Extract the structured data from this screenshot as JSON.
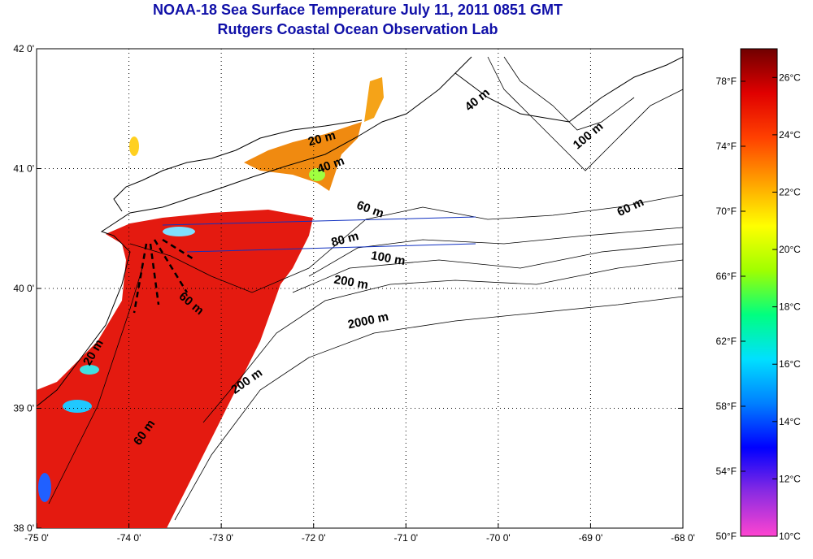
{
  "title": "NOAA-18 Sea Surface Temperature July 11, 2011 0851 GMT",
  "subtitle": "Rutgers Coastal Ocean Observation Lab",
  "map": {
    "lon_range": [
      -75,
      -68
    ],
    "lat_range": [
      38,
      42
    ],
    "lon_ticks": [
      {
        "value": -75,
        "label": "-75 0'"
      },
      {
        "value": -74,
        "label": "-74 0'"
      },
      {
        "value": -73,
        "label": "-73 0'"
      },
      {
        "value": -72,
        "label": "-72 0'"
      },
      {
        "value": -71,
        "label": "-71 0'"
      },
      {
        "value": -70,
        "label": "-70 0'"
      },
      {
        "value": -69,
        "label": "-69 0'"
      },
      {
        "value": -68,
        "label": "-68 0'"
      }
    ],
    "lat_ticks": [
      {
        "value": 42,
        "label": "42 0'"
      },
      {
        "value": 41,
        "label": "41 0'"
      },
      {
        "value": 40,
        "label": "40 0'"
      },
      {
        "value": 39,
        "label": "39 0'"
      },
      {
        "value": 38,
        "label": "38 0'"
      }
    ],
    "grid": "dotted",
    "contour_labels": [
      {
        "text": "20 m",
        "lon": -71.9,
        "lat": 41.22,
        "angle": -15
      },
      {
        "text": "40 m",
        "lon": -71.8,
        "lat": 41.0,
        "angle": -20
      },
      {
        "text": "40 m",
        "lon": -70.2,
        "lat": 41.55,
        "angle": -40
      },
      {
        "text": "100 m",
        "lon": -69.0,
        "lat": 41.25,
        "angle": -40
      },
      {
        "text": "60 m",
        "lon": -71.4,
        "lat": 40.63,
        "angle": 20
      },
      {
        "text": "60 m",
        "lon": -68.55,
        "lat": 40.65,
        "angle": -25
      },
      {
        "text": "80 m",
        "lon": -71.65,
        "lat": 40.38,
        "angle": -15
      },
      {
        "text": "100 m",
        "lon": -71.2,
        "lat": 40.22,
        "angle": 10
      },
      {
        "text": "200 m",
        "lon": -71.6,
        "lat": 40.02,
        "angle": 10
      },
      {
        "text": "2000 m",
        "lon": -71.4,
        "lat": 39.7,
        "angle": -12
      },
      {
        "text": "60 m",
        "lon": -73.35,
        "lat": 39.85,
        "angle": 40
      },
      {
        "text": "20 m",
        "lon": -74.35,
        "lat": 39.45,
        "angle": -60
      },
      {
        "text": "200 m",
        "lon": -72.7,
        "lat": 39.2,
        "angle": -35
      },
      {
        "text": "60 m",
        "lon": -73.8,
        "lat": 38.78,
        "angle": -55
      }
    ]
  },
  "colorbar": {
    "min_f": 50,
    "max_f": 80,
    "min_c": 10,
    "max_c": 27,
    "f_ticks": [
      {
        "value": 78,
        "label": "78°F"
      },
      {
        "value": 74,
        "label": "74°F"
      },
      {
        "value": 70,
        "label": "70°F"
      },
      {
        "value": 66,
        "label": "66°F"
      },
      {
        "value": 62,
        "label": "62°F"
      },
      {
        "value": 58,
        "label": "58°F"
      },
      {
        "value": 54,
        "label": "54°F"
      },
      {
        "value": 50,
        "label": "50°F"
      }
    ],
    "c_ticks": [
      {
        "value": 26,
        "label": "26°C"
      },
      {
        "value": 24,
        "label": "24°C"
      },
      {
        "value": 22,
        "label": "22°C"
      },
      {
        "value": 20,
        "label": "20°C"
      },
      {
        "value": 18,
        "label": "18°C"
      },
      {
        "value": 16,
        "label": "16°C"
      },
      {
        "value": 14,
        "label": "14°C"
      },
      {
        "value": 12,
        "label": "12°C"
      },
      {
        "value": 10,
        "label": "10°C"
      }
    ],
    "gradient_colors": [
      "#ff44d0",
      "#8a2be2",
      "#0000ff",
      "#0080ff",
      "#00e0ff",
      "#00ff80",
      "#a0ff00",
      "#ffff00",
      "#ffa000",
      "#ff4000",
      "#e00000",
      "#700000"
    ]
  }
}
